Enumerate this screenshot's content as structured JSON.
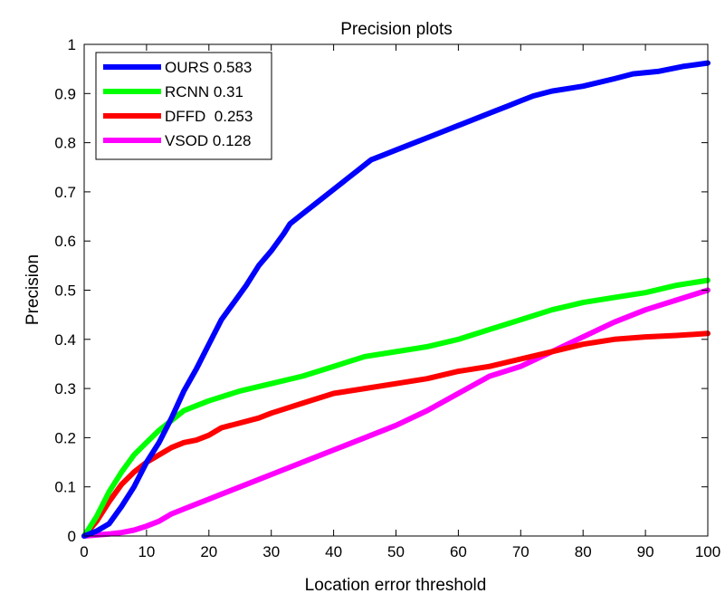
{
  "chart_data": {
    "type": "line",
    "title": "Precision plots",
    "xlabel": "Location error threshold",
    "ylabel": "Precision",
    "xlim": [
      0,
      100
    ],
    "ylim": [
      0,
      1
    ],
    "xticks": [
      0,
      10,
      20,
      30,
      40,
      50,
      60,
      70,
      80,
      90,
      100
    ],
    "yticks": [
      0,
      0.1,
      0.2,
      0.3,
      0.4,
      0.5,
      0.6,
      0.7,
      0.8,
      0.9,
      1
    ],
    "ytick_labels": [
      "0",
      "0.1",
      "0.2",
      "0.3",
      "0.4",
      "0.5",
      "0.6",
      "0.7",
      "0.8",
      "0.9",
      "1"
    ],
    "xtick_labels": [
      "0",
      "10",
      "20",
      "30",
      "40",
      "50",
      "60",
      "70",
      "80",
      "90",
      "100"
    ],
    "grid": false,
    "legend_position": "top-left",
    "series": [
      {
        "name": "OURS 0.583",
        "color": "#0000ff",
        "x": [
          0,
          2,
          4,
          6,
          8,
          10,
          12,
          14,
          16,
          18,
          20,
          22,
          24,
          26,
          28,
          30,
          32,
          33,
          35,
          37,
          40,
          42,
          44,
          46,
          48,
          50,
          53,
          56,
          60,
          63,
          66,
          68,
          70,
          72,
          75,
          80,
          85,
          88,
          92,
          96,
          100
        ],
        "y": [
          0,
          0.01,
          0.025,
          0.06,
          0.1,
          0.15,
          0.19,
          0.24,
          0.295,
          0.34,
          0.39,
          0.44,
          0.475,
          0.51,
          0.55,
          0.58,
          0.615,
          0.635,
          0.655,
          0.675,
          0.705,
          0.725,
          0.745,
          0.765,
          0.775,
          0.785,
          0.8,
          0.815,
          0.835,
          0.85,
          0.865,
          0.875,
          0.885,
          0.895,
          0.905,
          0.915,
          0.93,
          0.94,
          0.945,
          0.955,
          0.962
        ]
      },
      {
        "name": "RCNN 0.31",
        "color": "#00ff00",
        "x": [
          0,
          2,
          4,
          6,
          8,
          10,
          12,
          14,
          16,
          18,
          20,
          25,
          30,
          35,
          40,
          45,
          50,
          55,
          60,
          65,
          70,
          75,
          80,
          85,
          90,
          95,
          100
        ],
        "y": [
          0,
          0.04,
          0.09,
          0.13,
          0.165,
          0.19,
          0.215,
          0.235,
          0.255,
          0.265,
          0.275,
          0.295,
          0.31,
          0.325,
          0.345,
          0.365,
          0.375,
          0.385,
          0.4,
          0.42,
          0.44,
          0.46,
          0.475,
          0.485,
          0.495,
          0.51,
          0.52
        ]
      },
      {
        "name": "DFFD  0.253",
        "color": "#ff0000",
        "x": [
          0,
          2,
          4,
          6,
          8,
          10,
          12,
          14,
          16,
          18,
          20,
          22,
          25,
          28,
          30,
          35,
          40,
          45,
          50,
          55,
          60,
          65,
          70,
          75,
          80,
          85,
          90,
          95,
          100
        ],
        "y": [
          0,
          0.03,
          0.07,
          0.105,
          0.13,
          0.15,
          0.165,
          0.18,
          0.19,
          0.195,
          0.205,
          0.22,
          0.23,
          0.24,
          0.25,
          0.27,
          0.29,
          0.3,
          0.31,
          0.32,
          0.335,
          0.345,
          0.36,
          0.375,
          0.39,
          0.4,
          0.405,
          0.408,
          0.412
        ]
      },
      {
        "name": "VSOD 0.128",
        "color": "#ff00ff",
        "x": [
          0,
          2,
          4,
          6,
          8,
          10,
          12,
          14,
          16,
          18,
          20,
          22,
          25,
          28,
          30,
          35,
          40,
          45,
          50,
          55,
          60,
          65,
          70,
          75,
          80,
          85,
          90,
          95,
          100
        ],
        "y": [
          0,
          0.002,
          0.004,
          0.007,
          0.012,
          0.02,
          0.03,
          0.045,
          0.055,
          0.065,
          0.075,
          0.085,
          0.1,
          0.115,
          0.125,
          0.15,
          0.175,
          0.2,
          0.225,
          0.255,
          0.29,
          0.325,
          0.345,
          0.375,
          0.405,
          0.435,
          0.46,
          0.48,
          0.5
        ]
      }
    ]
  }
}
